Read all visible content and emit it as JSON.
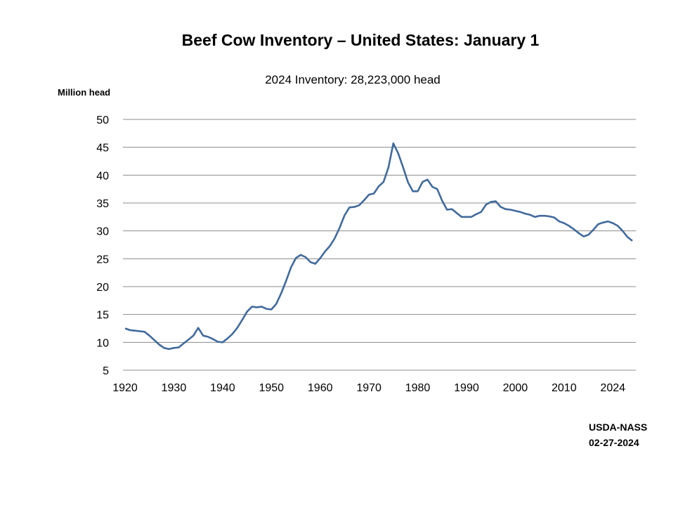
{
  "chart_data": {
    "type": "line",
    "title": "Beef Cow Inventory – United States: January 1",
    "subtitle": "2024 Inventory: 28,223,000 head",
    "ylabel": "Million head",
    "xlabel": "",
    "ylim": [
      5,
      50
    ],
    "xlim": [
      1920,
      2024
    ],
    "grid": true,
    "yticks": [
      5,
      10,
      15,
      20,
      25,
      30,
      35,
      40,
      45,
      50
    ],
    "xtick_labels": [
      "1920",
      "1930",
      "1940",
      "1950",
      "1960",
      "1970",
      "1980",
      "1990",
      "2000",
      "2010",
      "2024"
    ],
    "line_color": "#416A9C",
    "x": [
      1920,
      1921,
      1922,
      1923,
      1924,
      1925,
      1926,
      1927,
      1928,
      1929,
      1930,
      1931,
      1932,
      1933,
      1934,
      1935,
      1936,
      1937,
      1938,
      1939,
      1940,
      1941,
      1942,
      1943,
      1944,
      1945,
      1946,
      1947,
      1948,
      1949,
      1950,
      1951,
      1952,
      1953,
      1954,
      1955,
      1956,
      1957,
      1958,
      1959,
      1960,
      1961,
      1962,
      1963,
      1964,
      1965,
      1966,
      1967,
      1968,
      1969,
      1970,
      1971,
      1972,
      1973,
      1974,
      1975,
      1976,
      1977,
      1978,
      1979,
      1980,
      1981,
      1982,
      1983,
      1984,
      1985,
      1986,
      1987,
      1988,
      1989,
      1990,
      1991,
      1992,
      1993,
      1994,
      1995,
      1996,
      1997,
      1998,
      1999,
      2000,
      2001,
      2002,
      2003,
      2004,
      2005,
      2006,
      2007,
      2008,
      2009,
      2010,
      2011,
      2012,
      2013,
      2014,
      2015,
      2016,
      2017,
      2018,
      2019,
      2020,
      2021,
      2022,
      2023,
      2024
    ],
    "values": [
      12.5,
      12.2,
      12.1,
      12.0,
      11.9,
      11.2,
      10.4,
      9.6,
      9.0,
      8.8,
      9.0,
      9.1,
      9.8,
      10.5,
      11.2,
      12.6,
      11.2,
      11.0,
      10.6,
      10.1,
      10.0,
      10.7,
      11.5,
      12.6,
      14.0,
      15.5,
      16.4,
      16.3,
      16.4,
      16.0,
      15.9,
      16.9,
      18.8,
      21.0,
      23.4,
      25.1,
      25.7,
      25.3,
      24.4,
      24.1,
      25.1,
      26.3,
      27.3,
      28.7,
      30.6,
      32.8,
      34.2,
      34.3,
      34.6,
      35.5,
      36.5,
      36.7,
      38.0,
      38.8,
      41.4,
      45.7,
      43.9,
      41.4,
      38.7,
      37.1,
      37.1,
      38.8,
      39.2,
      37.9,
      37.5,
      35.4,
      33.8,
      33.9,
      33.2,
      32.5,
      32.5,
      32.5,
      33.0,
      33.4,
      34.7,
      35.2,
      35.3,
      34.3,
      33.9,
      33.8,
      33.6,
      33.4,
      33.1,
      32.9,
      32.5,
      32.7,
      32.7,
      32.6,
      32.4,
      31.7,
      31.4,
      30.9,
      30.3,
      29.6,
      29.0,
      29.3,
      30.2,
      31.2,
      31.5,
      31.7,
      31.4,
      30.9,
      30.0,
      28.9,
      28.2
    ]
  },
  "source": {
    "line1": "USDA-NASS",
    "line2": "02-27-2024"
  }
}
